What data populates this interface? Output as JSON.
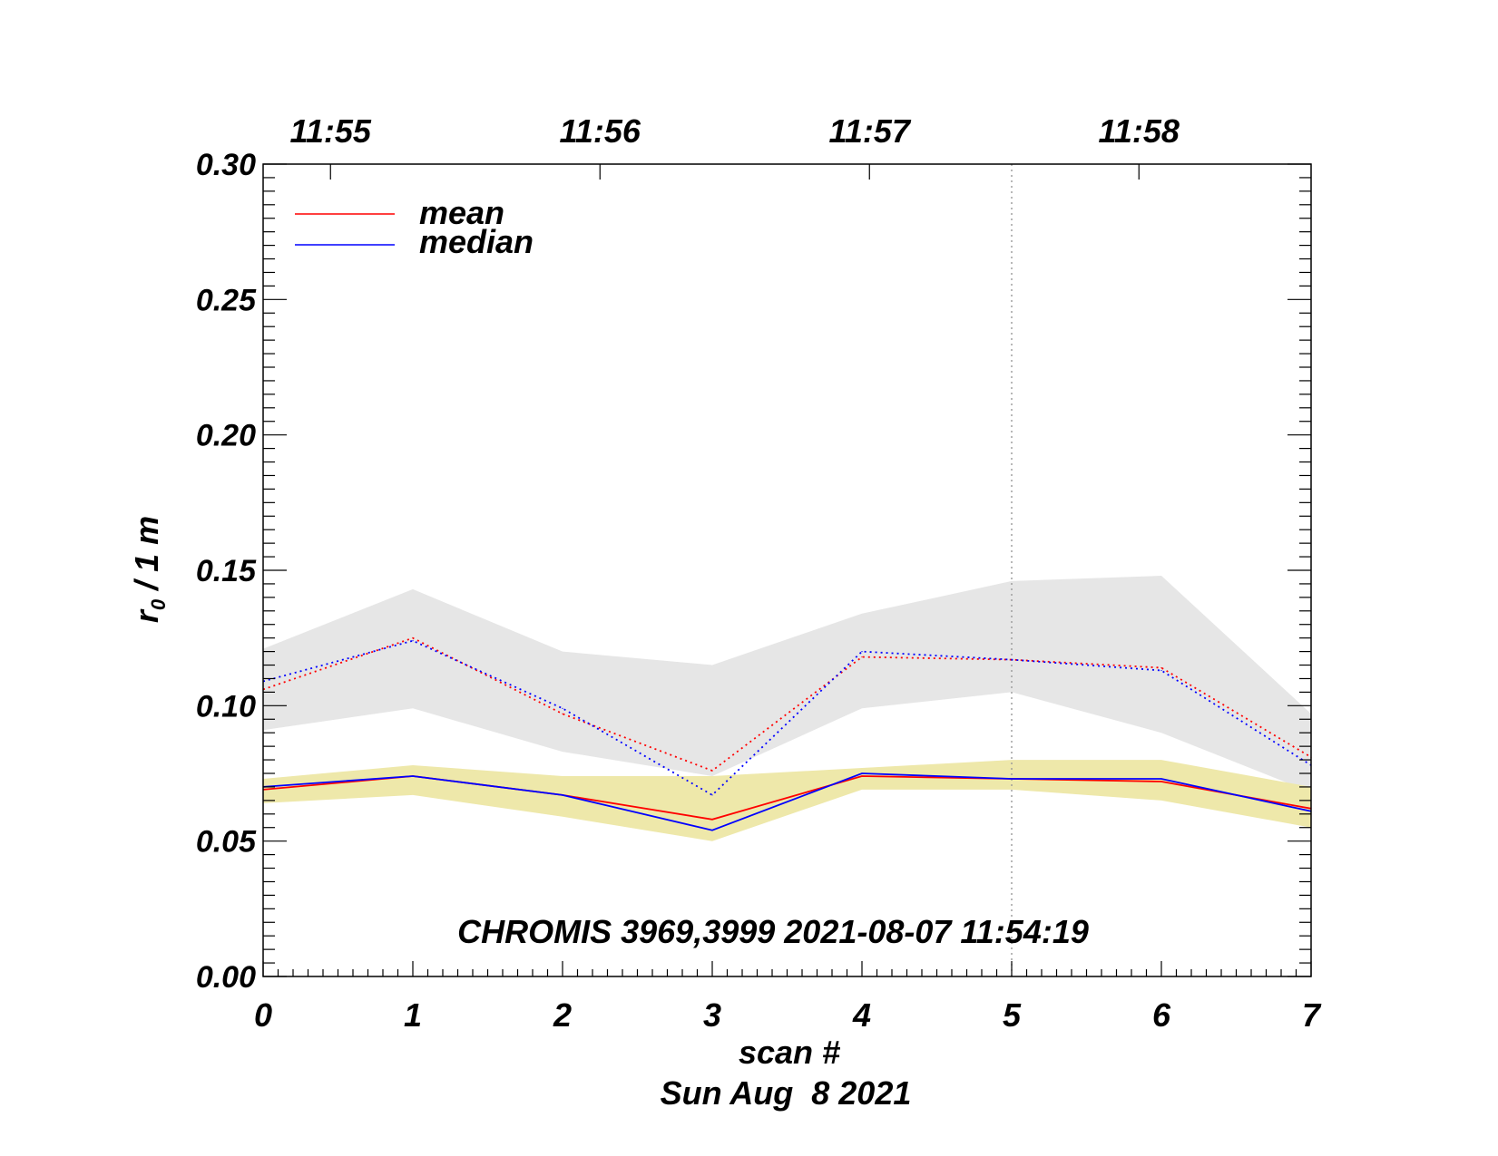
{
  "chart_data": {
    "type": "line",
    "title": "",
    "xlabel": "scan #",
    "xsublabel": "Sun Aug  8 2021",
    "ylabel": "r₀ / 1 m",
    "ylabel_main": "r",
    "ylabel_sub": "0",
    "ylabel_rest": " / 1 m",
    "xlim": [
      0,
      7
    ],
    "ylim": [
      0.0,
      0.3
    ],
    "x": [
      0,
      1,
      2,
      3,
      4,
      5,
      6,
      7
    ],
    "xtick_labels": [
      "0",
      "1",
      "2",
      "3",
      "4",
      "5",
      "6",
      "7"
    ],
    "ytick_values": [
      0.0,
      0.05,
      0.1,
      0.15,
      0.2,
      0.25,
      0.3
    ],
    "ytick_labels": [
      "0.00",
      "0.05",
      "0.10",
      "0.15",
      "0.20",
      "0.25",
      "0.30"
    ],
    "top_axis": {
      "ticks": [
        {
          "x": 0.45,
          "label": "11:55"
        },
        {
          "x": 2.25,
          "label": "11:56"
        },
        {
          "x": 4.05,
          "label": "11:57"
        },
        {
          "x": 5.85,
          "label": "11:58"
        }
      ]
    },
    "vline_x": 5,
    "annotation": "CHROMIS 3969,3999 2021-08-07 11:54:19",
    "legend": {
      "position": "top-left",
      "entries": [
        {
          "label": "mean",
          "color": "#ff0000"
        },
        {
          "label": "median",
          "color": "#0000ff"
        }
      ]
    },
    "bands": [
      {
        "name": "upper-range",
        "color": "#e6e6e6",
        "lower": [
          0.091,
          0.099,
          0.083,
          0.074,
          0.099,
          0.105,
          0.09,
          0.068
        ],
        "upper": [
          0.121,
          0.143,
          0.12,
          0.115,
          0.134,
          0.146,
          0.148,
          0.097
        ]
      },
      {
        "name": "lower-range",
        "color": "#eee8aa",
        "lower": [
          0.064,
          0.067,
          0.059,
          0.05,
          0.069,
          0.069,
          0.065,
          0.055
        ],
        "upper": [
          0.073,
          0.078,
          0.074,
          0.074,
          0.077,
          0.08,
          0.08,
          0.07
        ]
      }
    ],
    "series": [
      {
        "name": "mean (upper)",
        "color": "#ff0000",
        "style": "dotted",
        "values": [
          0.106,
          0.125,
          0.097,
          0.076,
          0.118,
          0.117,
          0.114,
          0.081
        ]
      },
      {
        "name": "median (upper)",
        "color": "#0000ff",
        "style": "dotted",
        "values": [
          0.109,
          0.124,
          0.099,
          0.067,
          0.12,
          0.117,
          0.113,
          0.078
        ]
      },
      {
        "name": "mean",
        "color": "#ff0000",
        "style": "solid",
        "values": [
          0.069,
          0.074,
          0.067,
          0.058,
          0.074,
          0.073,
          0.072,
          0.062
        ]
      },
      {
        "name": "median",
        "color": "#0000ff",
        "style": "solid",
        "values": [
          0.07,
          0.074,
          0.067,
          0.054,
          0.075,
          0.073,
          0.073,
          0.061
        ]
      }
    ]
  }
}
